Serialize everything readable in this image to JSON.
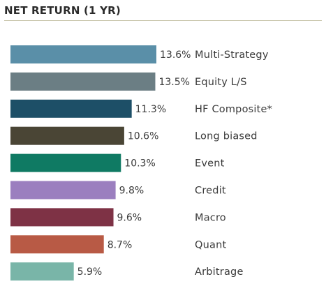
{
  "title": "NET RETURN (1 YR)",
  "chart_data": {
    "type": "bar",
    "orientation": "horizontal",
    "title": "NET RETURN (1 YR)",
    "xlabel": "",
    "ylabel": "",
    "grid": false,
    "xlim": [
      0,
      13.6
    ],
    "categories": [
      "Multi-Strategy",
      "Equity L/S",
      "HF Composite*",
      "Long biased",
      "Event",
      "Credit",
      "Macro",
      "Quant",
      "Arbitrage"
    ],
    "values": [
      13.6,
      13.5,
      11.3,
      10.6,
      10.3,
      9.8,
      9.6,
      8.7,
      5.9
    ],
    "value_labels": [
      "13.6%",
      "13.5%",
      "11.3%",
      "10.6%",
      "10.3%",
      "9.8%",
      "9.6%",
      "8.7%",
      "5.9%"
    ],
    "colors": [
      "#5a8fa8",
      "#6b7e84",
      "#1d4f67",
      "#4a4535",
      "#0f7a63",
      "#9b7fbf",
      "#7e3245",
      "#b85a45",
      "#79b5a8"
    ]
  }
}
